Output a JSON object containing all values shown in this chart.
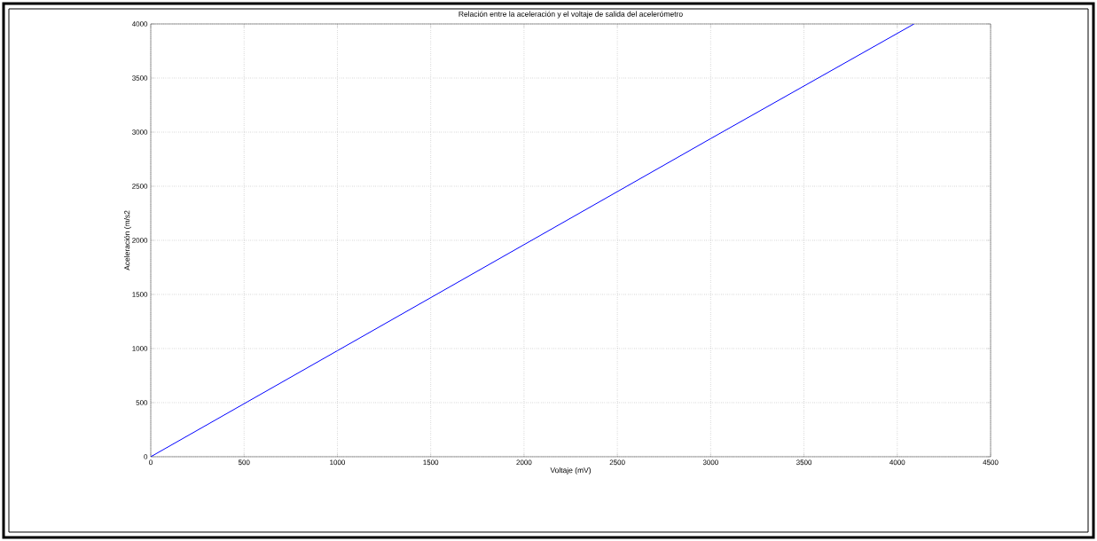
{
  "chart_data": {
    "type": "line",
    "title": "Relación entre la aceleración y el voltaje de salida del acelerómetro",
    "xlabel": "Voltaje (mV)",
    "ylabel": "Aceleración (m/s2",
    "x": [
      0,
      1000,
      2000,
      3000,
      4090
    ],
    "series": [
      {
        "color": "#0000ff",
        "values": [
          0,
          980,
          1960,
          2940,
          4000
        ]
      }
    ],
    "xlim": [
      0,
      4500
    ],
    "ylim": [
      0,
      4000
    ],
    "xticks": [
      0,
      500,
      1000,
      1500,
      2000,
      2500,
      3000,
      3500,
      4000,
      4500
    ],
    "yticks": [
      0,
      500,
      1000,
      1500,
      2000,
      2500,
      3000,
      3500,
      4000
    ],
    "grid": true,
    "line_style": "solid",
    "marker": "none"
  }
}
